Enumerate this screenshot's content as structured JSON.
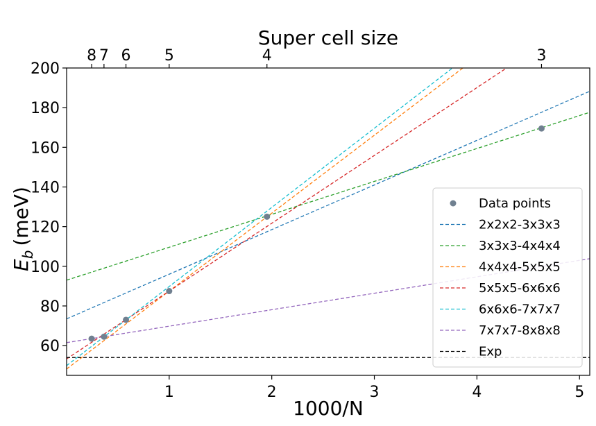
{
  "chart_data": {
    "type": "scatter",
    "xlabel": "1000/N",
    "ylabel": "E",
    "ylabel_subscript": "b",
    "ylabel_unit": "(meV)",
    "top_xlabel": "Super cell size",
    "xlim": [
      0,
      5.1
    ],
    "ylim": [
      45,
      200
    ],
    "x_ticks": [
      1,
      2,
      3,
      4,
      5
    ],
    "x_tick_labels": [
      "1",
      "2",
      "3",
      "4",
      "5"
    ],
    "y_ticks": [
      60,
      80,
      100,
      120,
      140,
      160,
      180,
      200
    ],
    "y_tick_labels": [
      "60",
      "80",
      "100",
      "120",
      "140",
      "160",
      "180",
      "200"
    ],
    "top_ticks": [
      {
        "x": 0.2441,
        "label": "8"
      },
      {
        "x": 0.3644,
        "label": "7"
      },
      {
        "x": 0.5787,
        "label": "6"
      },
      {
        "x": 1.0,
        "label": "5"
      },
      {
        "x": 1.9531,
        "label": "4"
      },
      {
        "x": 4.6296,
        "label": "3"
      }
    ],
    "points": {
      "name": "Data points",
      "color": "#708090",
      "x": [
        0.2441,
        0.3644,
        0.5787,
        1.0,
        1.9531,
        4.6296
      ],
      "y": [
        63.5,
        64.5,
        73.0,
        87.5,
        125.0,
        169.5
      ]
    },
    "series": [
      {
        "name": "2x2x2-3x3x3",
        "color": "#1f77b4",
        "slope": 22.5,
        "intercept": 73.5
      },
      {
        "name": "3x3x3-4x4x4",
        "color": "#2ca02c",
        "slope": 16.6,
        "intercept": 93.0
      },
      {
        "name": "4x4x4-5x5x5",
        "color": "#ff7f0e",
        "slope": 39.3,
        "intercept": 48.2
      },
      {
        "name": "5x5x5-6x6x6",
        "color": "#d62728",
        "slope": 34.2,
        "intercept": 53.3
      },
      {
        "name": "6x6x6-7x7x7",
        "color": "#17becf",
        "slope": 39.9,
        "intercept": 49.9
      },
      {
        "name": "7x7x7-8x8x8",
        "color": "#9467bd",
        "slope": 8.3,
        "intercept": 61.5
      },
      {
        "name": "Exp",
        "color": "#000000",
        "slope": 0,
        "intercept": 54.0
      }
    ],
    "legend_position": "lower-right"
  }
}
